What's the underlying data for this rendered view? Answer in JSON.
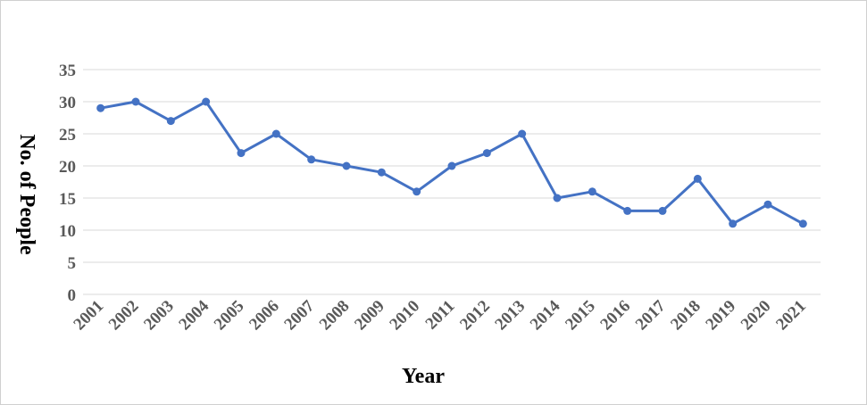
{
  "chart_data": {
    "type": "line",
    "title": "",
    "xlabel": "Year",
    "ylabel": "No. of People",
    "ylim": [
      0,
      35
    ],
    "yticks": [
      0,
      5,
      10,
      15,
      20,
      25,
      30,
      35
    ],
    "grid": true,
    "legend": "none",
    "line_color": "#4472C4",
    "x": [
      "2001",
      "2002",
      "2003",
      "2004",
      "2005",
      "2006",
      "2007",
      "2008",
      "2009",
      "2010",
      "2011",
      "2012",
      "2013",
      "2014",
      "2015",
      "2016",
      "2017",
      "2018",
      "2019",
      "2020",
      "2021"
    ],
    "series": [
      {
        "values": [
          29,
          30,
          27,
          30,
          22,
          25,
          21,
          20,
          19,
          16,
          20,
          22,
          25,
          15,
          16,
          13,
          13,
          18,
          11,
          14,
          11
        ]
      }
    ]
  }
}
